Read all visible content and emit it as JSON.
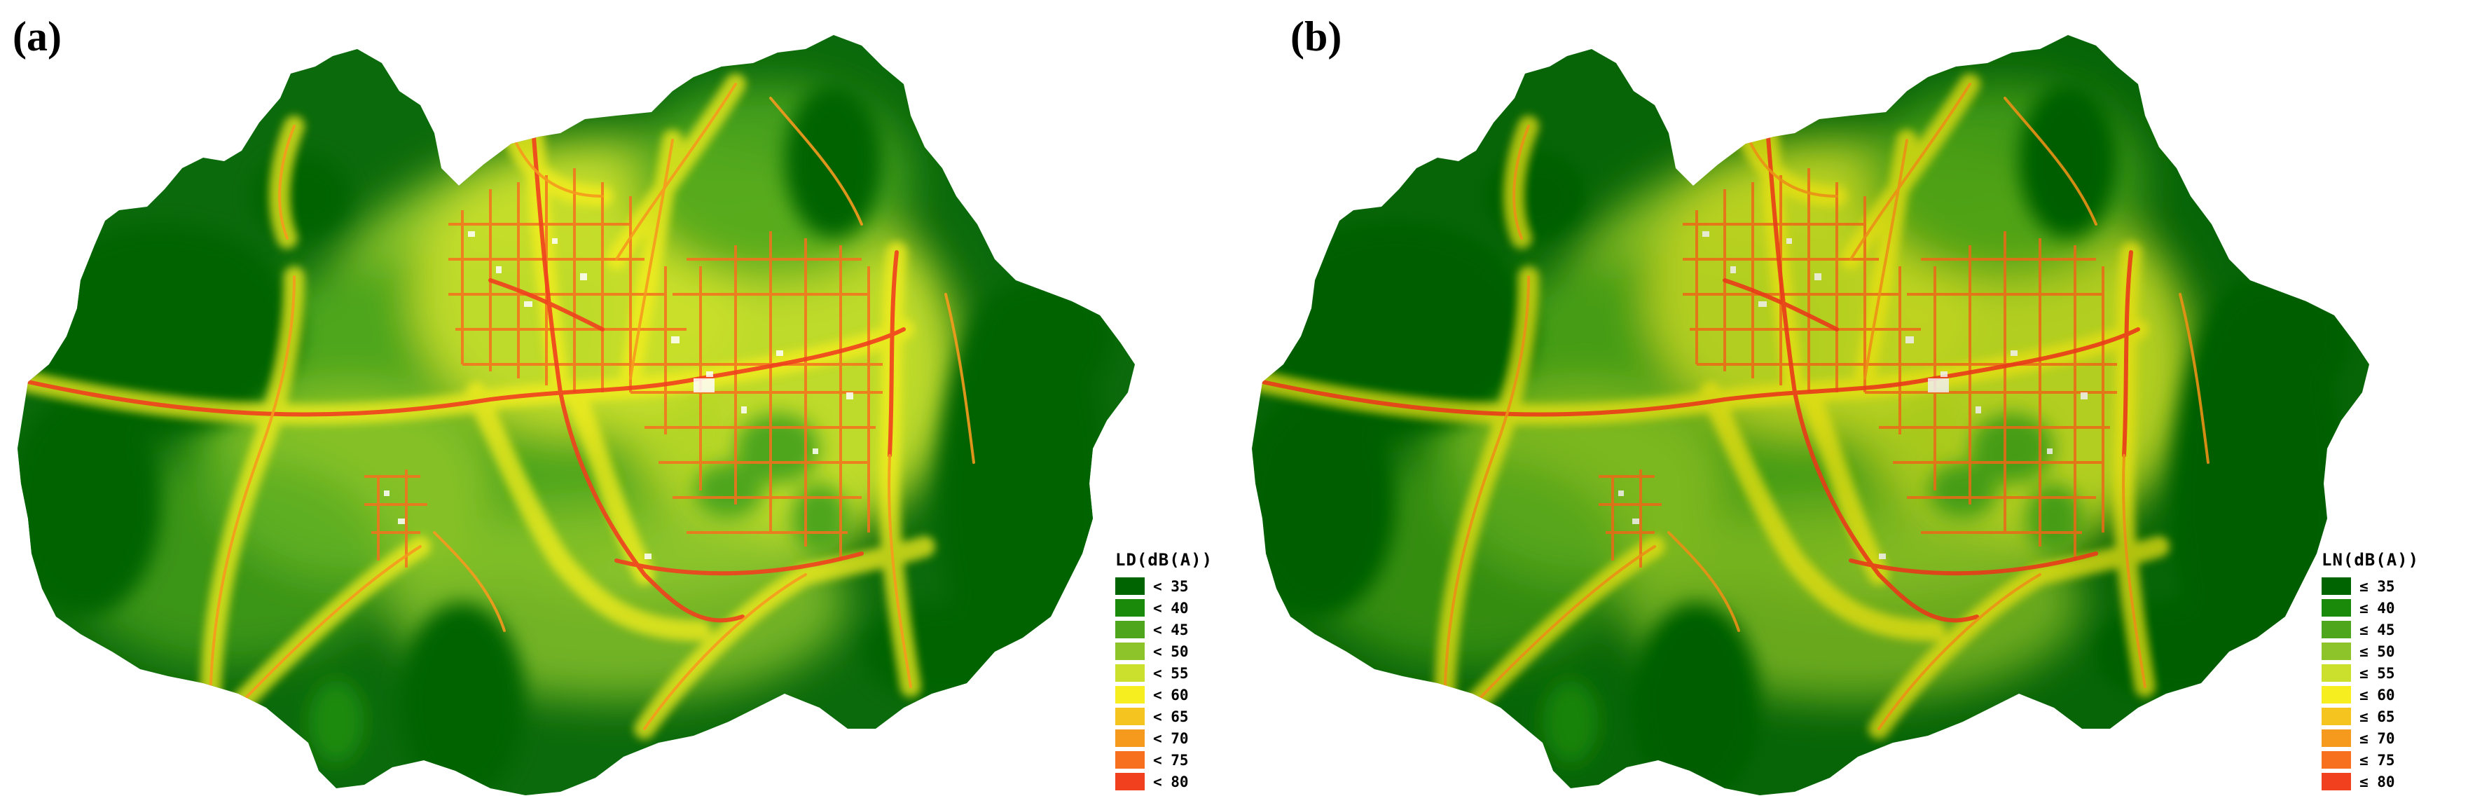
{
  "panels": [
    {
      "label": "(a)",
      "legend": {
        "title": "LD(dB(A))",
        "items": [
          {
            "label": "< 35",
            "color": "#006400"
          },
          {
            "label": "< 40",
            "color": "#1a8a0a"
          },
          {
            "label": "< 45",
            "color": "#4ea61c"
          },
          {
            "label": "< 50",
            "color": "#8cc42a"
          },
          {
            "label": "< 55",
            "color": "#cbe02c"
          },
          {
            "label": "< 60",
            "color": "#f6ee1e"
          },
          {
            "label": "< 65",
            "color": "#f6c41e"
          },
          {
            "label": "< 70",
            "color": "#f69a1e"
          },
          {
            "label": "< 75",
            "color": "#f6701e"
          },
          {
            "label": "< 80",
            "color": "#f0401e"
          }
        ]
      }
    },
    {
      "label": "(b)",
      "legend": {
        "title": "LN(dB(A))",
        "items": [
          {
            "label": "≤ 35",
            "color": "#006400"
          },
          {
            "label": "≤ 40",
            "color": "#1a8a0a"
          },
          {
            "label": "≤ 45",
            "color": "#4ea61c"
          },
          {
            "label": "≤ 50",
            "color": "#8cc42a"
          },
          {
            "label": "≤ 55",
            "color": "#cbe02c"
          },
          {
            "label": "≤ 60",
            "color": "#f6ee1e"
          },
          {
            "label": "≤ 65",
            "color": "#f6c41e"
          },
          {
            "label": "≤ 70",
            "color": "#f69a1e"
          },
          {
            "label": "≤ 75",
            "color": "#f6701e"
          },
          {
            "label": "≤ 80",
            "color": "#f0401e"
          }
        ]
      }
    }
  ]
}
